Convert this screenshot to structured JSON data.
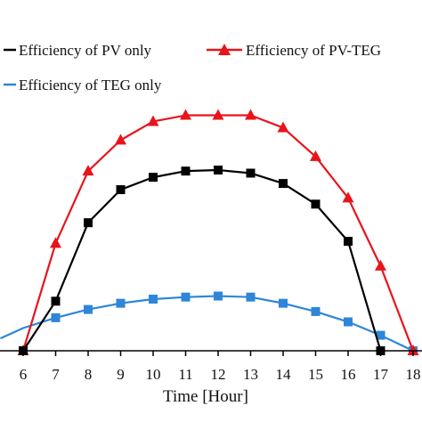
{
  "chart_data": {
    "type": "line",
    "xlabel": "Time [Hour]",
    "ylabel": "",
    "x": [
      6,
      7,
      8,
      9,
      10,
      11,
      12,
      13,
      14,
      15,
      16,
      17,
      18
    ],
    "xlim": [
      5.3,
      18.1
    ],
    "ylim": [
      0,
      11.5
    ],
    "legend_position": "top",
    "series": [
      {
        "name": "Efficiency of PV only",
        "color": "#000000",
        "marker": "square",
        "values": [
          0,
          2.4,
          6.2,
          7.8,
          8.4,
          8.7,
          8.75,
          8.6,
          8.1,
          7.1,
          5.3,
          0,
          null
        ]
      },
      {
        "name": "Efficiency of PV-TEG",
        "color": "#e8141c",
        "marker": "triangle",
        "values": [
          0,
          5.2,
          8.7,
          10.2,
          11.1,
          11.4,
          11.4,
          11.4,
          10.8,
          9.4,
          7.4,
          4.1,
          0
        ]
      },
      {
        "name": "Efficiency of TEG only",
        "color": "#2e86d8",
        "marker": "square",
        "values": [
          null,
          1.6,
          2.0,
          2.3,
          2.5,
          2.6,
          2.65,
          2.6,
          2.3,
          1.9,
          1.4,
          0.75,
          0
        ]
      }
    ],
    "lead_in": {
      "x": [
        5.3,
        6.0,
        7.0
      ],
      "values": [
        0.6,
        1.1,
        1.6
      ]
    }
  }
}
